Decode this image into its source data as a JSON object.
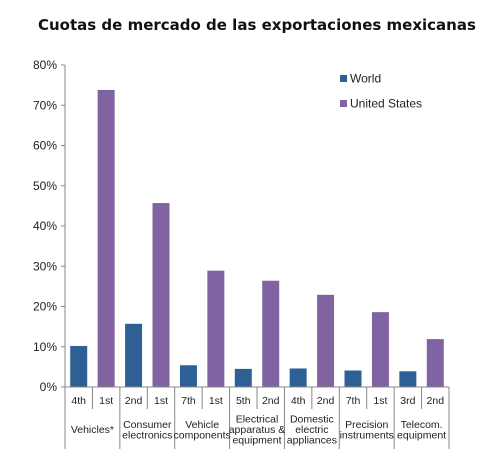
{
  "chart_data": {
    "type": "bar",
    "title": "Cuotas de mercado de las exportaciones mexicanas",
    "xlabel": "",
    "ylabel": "",
    "ylim": [
      0,
      80
    ],
    "yticks": [
      "0%",
      "10%",
      "20%",
      "30%",
      "40%",
      "50%",
      "60%",
      "70%",
      "80%"
    ],
    "grid": false,
    "legend_position": "top-right",
    "colors": {
      "World": "#2e5f95",
      "United States": "#8064a2"
    },
    "categories": [
      [
        "Vehicles*"
      ],
      [
        "Consumer",
        "electronics"
      ],
      [
        "Vehicle",
        "components"
      ],
      [
        "Electrical",
        "apparatus &",
        "equipment"
      ],
      [
        "Domestic",
        "electric",
        "appliances"
      ],
      [
        "Precision",
        "instruments"
      ],
      [
        "Telecom.",
        "equipment"
      ]
    ],
    "series": [
      {
        "name": "World",
        "values": [
          10.2,
          15.7,
          5.4,
          4.5,
          4.6,
          4.1,
          3.9
        ],
        "rank_labels": [
          "4th",
          "2nd",
          "7th",
          "5th",
          "4th",
          "7th",
          "3rd"
        ]
      },
      {
        "name": "United States",
        "values": [
          73.8,
          45.7,
          28.9,
          26.4,
          22.9,
          18.6,
          11.9
        ],
        "rank_labels": [
          "1st",
          "1st",
          "1st",
          "2nd",
          "2nd",
          "1st",
          "2nd"
        ]
      }
    ]
  }
}
